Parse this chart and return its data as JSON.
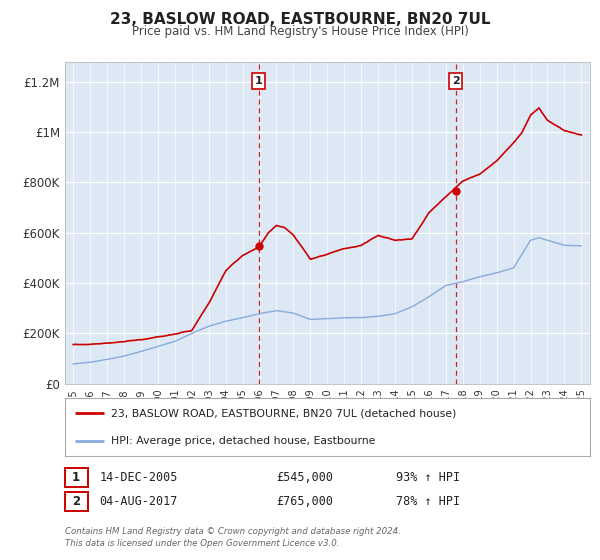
{
  "title": "23, BASLOW ROAD, EASTBOURNE, BN20 7UL",
  "subtitle": "Price paid vs. HM Land Registry's House Price Index (HPI)",
  "legend_line1": "23, BASLOW ROAD, EASTBOURNE, BN20 7UL (detached house)",
  "legend_line2": "HPI: Average price, detached house, Eastbourne",
  "annotation_footnote": "Contains HM Land Registry data © Crown copyright and database right 2024.\nThis data is licensed under the Open Government Licence v3.0.",
  "sale1_label": "1",
  "sale1_date": "14-DEC-2005",
  "sale1_price": "£545,000",
  "sale1_hpi": "93% ↑ HPI",
  "sale2_label": "2",
  "sale2_date": "04-AUG-2017",
  "sale2_price": "£765,000",
  "sale2_hpi": "78% ↑ HPI",
  "sale1_x": 2005.958,
  "sale1_y": 545000,
  "sale2_x": 2017.583,
  "sale2_y": 765000,
  "vline1_x": 2005.958,
  "vline2_x": 2017.583,
  "xlim": [
    1994.5,
    2025.5
  ],
  "ylim": [
    0,
    1280000
  ],
  "yticks": [
    0,
    200000,
    400000,
    600000,
    800000,
    1000000,
    1200000
  ],
  "ytick_labels": [
    "£0",
    "£200K",
    "£400K",
    "£600K",
    "£800K",
    "£1M",
    "£1.2M"
  ],
  "xticks": [
    1995,
    1996,
    1997,
    1998,
    1999,
    2000,
    2001,
    2002,
    2003,
    2004,
    2005,
    2006,
    2007,
    2008,
    2009,
    2010,
    2011,
    2012,
    2013,
    2014,
    2015,
    2016,
    2017,
    2018,
    2019,
    2020,
    2021,
    2022,
    2023,
    2024,
    2025
  ],
  "house_color": "#cc0000",
  "hpi_color": "#88aadd",
  "bg_color": "#dce9f5",
  "plot_bg": "#ffffff",
  "vline_color": "#cc0000",
  "marker_color": "#cc0000"
}
